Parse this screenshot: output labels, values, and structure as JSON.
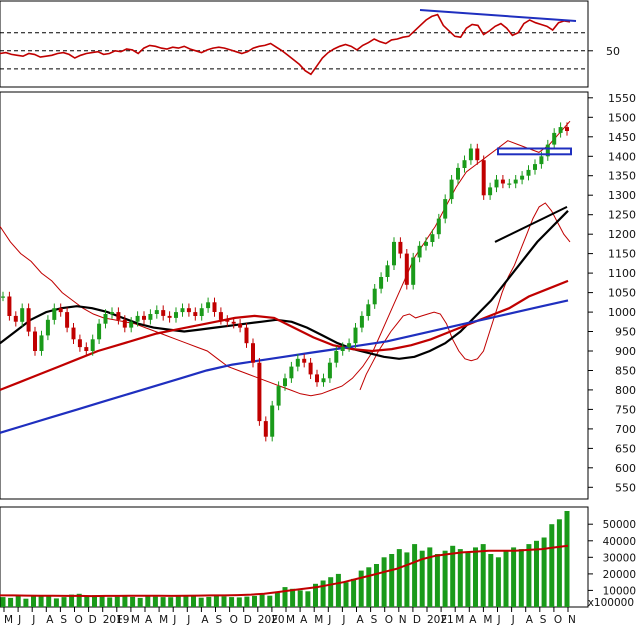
{
  "chart_data": [
    {
      "panel": "rsi",
      "type": "line",
      "yticks": [
        {
          "value": 50,
          "label": "50"
        }
      ],
      "reference_levels": [
        30,
        50,
        70
      ],
      "series": [
        {
          "color": "#c00000",
          "values": [
            47,
            48,
            46,
            45,
            44,
            47,
            46,
            43,
            44,
            45,
            47,
            48,
            46,
            42,
            45,
            47,
            48,
            49,
            46,
            47,
            50,
            49,
            52,
            51,
            47,
            53,
            56,
            55,
            53,
            52,
            54,
            53,
            55,
            52,
            50,
            48,
            51,
            53,
            54,
            53,
            51,
            49,
            47,
            49,
            53,
            55,
            56,
            58,
            54,
            50,
            45,
            40,
            35,
            28,
            24,
            33,
            42,
            48,
            52,
            55,
            57,
            55,
            51,
            56,
            59,
            63,
            60,
            58,
            62,
            63,
            65,
            66,
            72,
            78,
            84,
            88,
            90,
            78,
            72,
            66,
            65,
            75,
            79,
            78,
            68,
            72,
            77,
            80,
            75,
            67,
            70,
            80,
            84,
            81,
            79,
            77,
            73,
            81,
            83,
            82
          ]
        }
      ],
      "trendline": {
        "color": "#1f2fbf"
      }
    },
    {
      "panel": "price",
      "type": "candlestick",
      "y_ticks": [
        550,
        600,
        650,
        700,
        750,
        800,
        850,
        900,
        950,
        1000,
        1050,
        1100,
        1150,
        1200,
        1250,
        1300,
        1350,
        1400,
        1450,
        1500,
        1550
      ],
      "ylim": [
        520,
        1565
      ],
      "close": [
        1040,
        990,
        975,
        1010,
        950,
        900,
        940,
        980,
        1010,
        1000,
        960,
        930,
        910,
        900,
        930,
        970,
        995,
        1000,
        980,
        960,
        975,
        990,
        980,
        995,
        1005,
        990,
        985,
        1000,
        1010,
        1000,
        990,
        1010,
        1025,
        1000,
        980,
        975,
        970,
        960,
        920,
        870,
        720,
        680,
        760,
        810,
        830,
        860,
        880,
        870,
        840,
        820,
        830,
        870,
        900,
        910,
        920,
        960,
        990,
        1020,
        1060,
        1090,
        1120,
        1180,
        1150,
        1070,
        1140,
        1170,
        1180,
        1200,
        1240,
        1290,
        1340,
        1370,
        1390,
        1420,
        1390,
        1300,
        1320,
        1340,
        1330,
        1330,
        1340,
        1350,
        1365,
        1380,
        1400,
        1430,
        1460,
        1475,
        1465
      ],
      "candle_colors": {
        "up": "#1a9a1a",
        "down": "#c00000"
      },
      "overlays": [
        {
          "color": "#c00000",
          "values": [
            800,
            840,
            870,
            900,
            925,
            950,
            970,
            990,
            995,
            985,
            990,
            995,
            1000,
            995,
            970,
            930,
            900,
            880,
            875,
            880,
            900,
            950,
            1000,
            1050,
            1090,
            1120,
            1160,
            1200,
            1240,
            1270,
            1280,
            1260,
            1230,
            1200,
            1180
          ]
        },
        {
          "color": "#c00000",
          "values": [
            1220,
            1180,
            1150,
            1130,
            1100,
            1080,
            1050,
            1030,
            1010,
            995,
            985,
            980,
            975,
            970,
            960,
            950,
            940,
            930,
            920,
            910,
            900,
            880,
            860,
            850,
            840,
            830,
            820,
            810,
            800,
            790,
            785,
            790,
            800,
            810,
            830,
            860,
            900,
            960,
            1020,
            1080,
            1140,
            1180,
            1220,
            1270,
            1320,
            1360,
            1380,
            1400,
            1420,
            1440,
            1430,
            1420,
            1410,
            1430,
            1460,
            1490
          ]
        },
        {
          "color": "#000000",
          "values": [
            920,
            950,
            980,
            1000,
            1010,
            1015,
            1010,
            1000,
            985,
            970,
            960,
            955,
            950,
            955,
            960,
            965,
            970,
            975,
            980,
            975,
            960,
            940,
            920,
            905,
            895,
            885,
            880,
            885,
            900,
            920,
            950,
            990,
            1030,
            1080,
            1130,
            1180,
            1220,
            1260
          ]
        },
        {
          "color": "#c00000",
          "values": [
            800,
            820,
            840,
            860,
            880,
            900,
            915,
            930,
            945,
            955,
            965,
            975,
            985,
            990,
            985,
            960,
            935,
            915,
            905,
            900,
            905,
            915,
            930,
            950,
            970,
            990,
            1010,
            1040,
            1060,
            1080
          ]
        },
        {
          "color": "#1f2fbf",
          "values": [
            690,
            710,
            730,
            750,
            770,
            790,
            810,
            830,
            850,
            865,
            875,
            885,
            895,
            905,
            915,
            925,
            940,
            955,
            970,
            985,
            1000,
            1015,
            1030
          ]
        }
      ],
      "rectangle_color": "#1f2fbf",
      "trendline_color": "#000000"
    },
    {
      "panel": "volume",
      "type": "bar",
      "y_ticks": [
        {
          "value": 10000,
          "label": "10000"
        },
        {
          "value": 20000,
          "label": "20000"
        },
        {
          "value": 30000,
          "label": "30000"
        },
        {
          "value": 40000,
          "label": "40000"
        },
        {
          "value": 50000,
          "label": "50000"
        }
      ],
      "multiplier_label": "x100000",
      "bar_color": "#1a9a1a",
      "ma_color": "#c00000",
      "values": [
        6000,
        5500,
        7000,
        5000,
        6500,
        7200,
        6800,
        5200,
        6000,
        7500,
        8000,
        6900,
        7100,
        6600,
        5800,
        6200,
        7000,
        6100,
        5500,
        6800,
        6300,
        6000,
        5900,
        6500,
        7000,
        6800,
        5600,
        6100,
        7200,
        6400,
        6000,
        5800,
        6300,
        6700,
        7500,
        6800,
        9000,
        12000,
        11000,
        10000,
        9500,
        14000,
        16000,
        18000,
        20000,
        15000,
        17000,
        22000,
        24000,
        26000,
        30000,
        32000,
        35000,
        33000,
        38000,
        34000,
        36000,
        32000,
        34000,
        37000,
        35000,
        33000,
        36000,
        38000,
        32000,
        30000,
        34000,
        36000,
        35000,
        38000,
        40000,
        42000,
        50000,
        53000,
        58000
      ],
      "ma_values": [
        7000,
        7000,
        6900,
        6800,
        6800,
        6700,
        6700,
        6600,
        6700,
        6700,
        6800,
        6800,
        6800,
        6700,
        6800,
        6900,
        7000,
        7000,
        7200,
        7500,
        8000,
        9000,
        10000,
        11000,
        12000,
        13500,
        15000,
        17000,
        19000,
        21000,
        23000,
        26000,
        29000,
        31000,
        32000,
        33000,
        33500,
        34000,
        34000,
        34000,
        34500,
        35000,
        36000,
        37000
      ]
    }
  ],
  "x_axis": {
    "labels": [
      "M",
      "J",
      "J",
      "A",
      "S",
      "O",
      "D",
      "2019",
      "F",
      "M",
      "A",
      "M",
      "J",
      "J",
      "A",
      "S",
      "O",
      "D",
      "2020",
      "F",
      "M",
      "A",
      "M",
      "J",
      "J",
      "A",
      "S",
      "O",
      "N",
      "D",
      "2021",
      "F",
      "M",
      "A",
      "M",
      "J",
      "J",
      "A",
      "S",
      "O",
      "N"
    ]
  }
}
